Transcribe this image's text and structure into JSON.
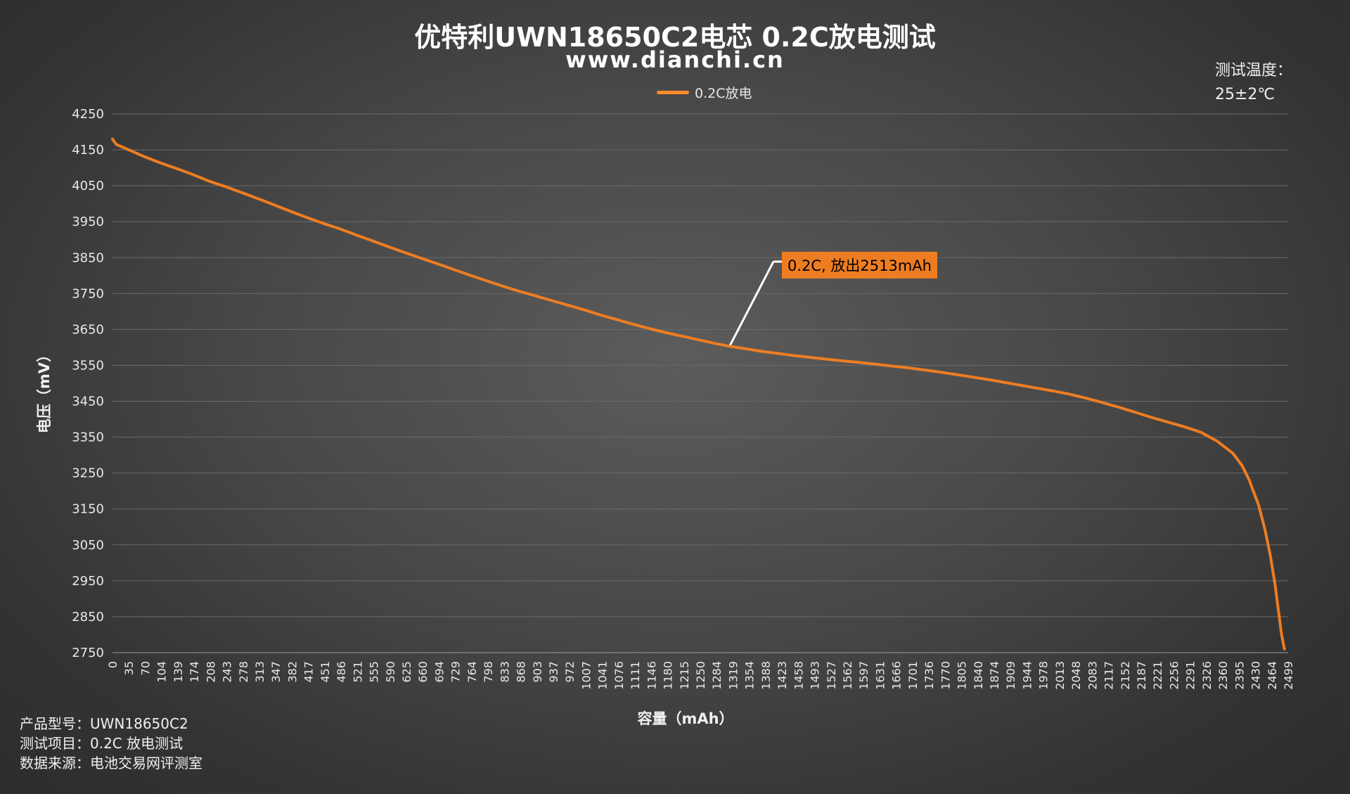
{
  "header": {
    "title": "优特利UWN18650C2电芯 0.2C放电测试",
    "subtitle": "www.dianchi.cn"
  },
  "test_temperature": {
    "label": "测试温度：",
    "value": "25±2℃"
  },
  "footer": {
    "model": "产品型号：UWN18650C2",
    "test_item": "测试项目：0.2C 放电测试",
    "source": "数据来源：电池交易网评测室"
  },
  "annotation": {
    "text": "0.2C, 放出2513mAh"
  },
  "chart_data": {
    "type": "line",
    "title": "优特利UWN18650C2电芯 0.2C放电测试",
    "xlabel": "容量（mAh）",
    "ylabel": "电压（mV）",
    "ylim": [
      2750,
      4250
    ],
    "xlim": [
      0,
      2513
    ],
    "yticks": [
      4250,
      4150,
      4050,
      3950,
      3850,
      3750,
      3650,
      3550,
      3450,
      3350,
      3250,
      3150,
      3050,
      2950,
      2850,
      2750
    ],
    "xticks": [
      "0",
      "35",
      "70",
      "104",
      "139",
      "174",
      "208",
      "243",
      "278",
      "313",
      "347",
      "382",
      "417",
      "451",
      "486",
      "521",
      "555",
      "590",
      "625",
      "660",
      "694",
      "729",
      "764",
      "798",
      "833",
      "868",
      "903",
      "937",
      "972",
      "1007",
      "1041",
      "1076",
      "1111",
      "1146",
      "1180",
      "1215",
      "1250",
      "1284",
      "1319",
      "1354",
      "1388",
      "1423",
      "1458",
      "1493",
      "1527",
      "1562",
      "1597",
      "1631",
      "1666",
      "1701",
      "1736",
      "1770",
      "1805",
      "1840",
      "1874",
      "1909",
      "1944",
      "1978",
      "2013",
      "2048",
      "2083",
      "2117",
      "2152",
      "2187",
      "2221",
      "2256",
      "2291",
      "2326",
      "2360",
      "2395",
      "2430",
      "2464",
      "2499"
    ],
    "grid": true,
    "legend_position": "top",
    "series": [
      {
        "name": "0.2C放电",
        "color": "#ee7d22",
        "points": [
          [
            0,
            4180
          ],
          [
            8,
            4165
          ],
          [
            35,
            4150
          ],
          [
            70,
            4130
          ],
          [
            104,
            4113
          ],
          [
            139,
            4097
          ],
          [
            174,
            4080
          ],
          [
            208,
            4062
          ],
          [
            243,
            4047
          ],
          [
            278,
            4030
          ],
          [
            313,
            4013
          ],
          [
            347,
            3996
          ],
          [
            382,
            3978
          ],
          [
            417,
            3961
          ],
          [
            451,
            3945
          ],
          [
            486,
            3930
          ],
          [
            521,
            3913
          ],
          [
            555,
            3897
          ],
          [
            590,
            3880
          ],
          [
            625,
            3864
          ],
          [
            660,
            3848
          ],
          [
            694,
            3833
          ],
          [
            729,
            3817
          ],
          [
            764,
            3801
          ],
          [
            798,
            3786
          ],
          [
            833,
            3771
          ],
          [
            868,
            3757
          ],
          [
            903,
            3744
          ],
          [
            937,
            3731
          ],
          [
            972,
            3718
          ],
          [
            1007,
            3705
          ],
          [
            1041,
            3691
          ],
          [
            1076,
            3678
          ],
          [
            1111,
            3665
          ],
          [
            1146,
            3653
          ],
          [
            1180,
            3642
          ],
          [
            1215,
            3632
          ],
          [
            1250,
            3622
          ],
          [
            1284,
            3612
          ],
          [
            1319,
            3603
          ],
          [
            1354,
            3596
          ],
          [
            1388,
            3589
          ],
          [
            1423,
            3583
          ],
          [
            1458,
            3577
          ],
          [
            1493,
            3572
          ],
          [
            1527,
            3567
          ],
          [
            1562,
            3562
          ],
          [
            1597,
            3558
          ],
          [
            1631,
            3553
          ],
          [
            1666,
            3548
          ],
          [
            1701,
            3543
          ],
          [
            1736,
            3537
          ],
          [
            1770,
            3531
          ],
          [
            1805,
            3524
          ],
          [
            1840,
            3517
          ],
          [
            1874,
            3510
          ],
          [
            1909,
            3502
          ],
          [
            1944,
            3494
          ],
          [
            1978,
            3486
          ],
          [
            2013,
            3478
          ],
          [
            2048,
            3469
          ],
          [
            2083,
            3458
          ],
          [
            2117,
            3446
          ],
          [
            2152,
            3433
          ],
          [
            2187,
            3419
          ],
          [
            2221,
            3405
          ],
          [
            2256,
            3392
          ],
          [
            2291,
            3379
          ],
          [
            2326,
            3364
          ],
          [
            2360,
            3340
          ],
          [
            2395,
            3305
          ],
          [
            2415,
            3270
          ],
          [
            2430,
            3230
          ],
          [
            2450,
            3160
          ],
          [
            2464,
            3090
          ],
          [
            2475,
            3020
          ],
          [
            2485,
            2940
          ],
          [
            2492,
            2870
          ],
          [
            2499,
            2800
          ],
          [
            2505,
            2760
          ]
        ]
      }
    ]
  }
}
